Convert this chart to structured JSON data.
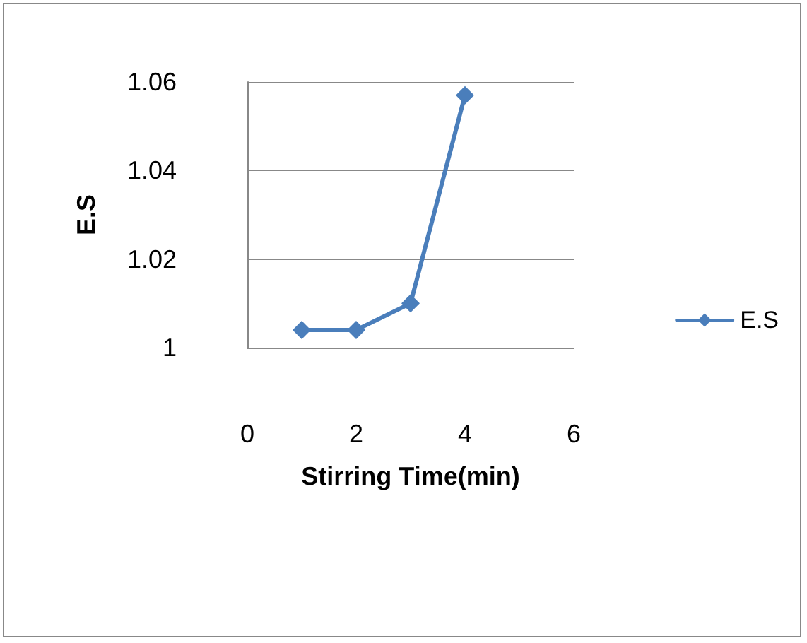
{
  "chart_data": {
    "type": "line",
    "xlabel": "Stirring Time(min)",
    "ylabel": "E.S",
    "x": [
      1,
      2,
      3,
      4
    ],
    "series": [
      {
        "name": "E.S",
        "color": "#4a7ebb",
        "values": [
          1.004,
          1.004,
          1.01,
          1.057
        ]
      }
    ],
    "xlim": [
      0,
      6
    ],
    "xticks": [
      0,
      2,
      4,
      6
    ],
    "ylim": [
      1,
      1.06
    ],
    "yticks": [
      1,
      1.02,
      1.04,
      1.06
    ],
    "grid": "y",
    "legend": "right",
    "marker": "diamond",
    "line_style": "solid"
  }
}
